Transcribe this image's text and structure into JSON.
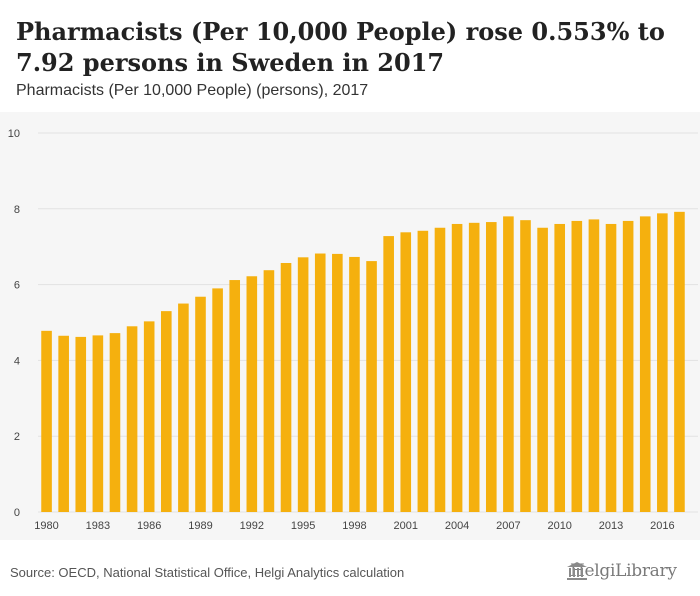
{
  "header": {
    "title": "Pharmacists (Per 10,000 People) rose 0.553% to 7.92 persons in Sweden in 2017",
    "subtitle": "Pharmacists (Per 10,000 People) (persons), 2017"
  },
  "footer": {
    "source": "Source: OECD, National Statistical Office, Helgi Analytics calculation",
    "logo_text": "HelgiLibrary",
    "logo_icon": "library-building-icon"
  },
  "colors": {
    "bar": "#f5b00e",
    "plot_background": "#f6f6f6",
    "gridline": "#e2e2e2",
    "axis_text": "#444444"
  },
  "chart_data": {
    "type": "bar",
    "title": "",
    "xlabel": "",
    "ylabel": "",
    "ylim": [
      0,
      10
    ],
    "yticks": [
      0,
      2,
      4,
      6,
      8,
      10
    ],
    "xtick_labels": [
      "1980",
      "1983",
      "1986",
      "1989",
      "1992",
      "1995",
      "1998",
      "2001",
      "2004",
      "2007",
      "2010",
      "2013",
      "2016"
    ],
    "grid": "horizontal",
    "categories": [
      1980,
      1981,
      1982,
      1983,
      1984,
      1985,
      1986,
      1987,
      1988,
      1989,
      1990,
      1991,
      1992,
      1993,
      1994,
      1995,
      1996,
      1997,
      1998,
      1999,
      2000,
      2001,
      2002,
      2003,
      2004,
      2005,
      2006,
      2007,
      2008,
      2009,
      2010,
      2011,
      2012,
      2013,
      2014,
      2015,
      2016,
      2017
    ],
    "values": [
      4.78,
      4.65,
      4.62,
      4.66,
      4.72,
      4.9,
      5.03,
      5.3,
      5.5,
      5.68,
      5.9,
      6.12,
      6.22,
      6.38,
      6.57,
      6.72,
      6.82,
      6.81,
      6.73,
      6.62,
      7.28,
      7.38,
      7.42,
      7.5,
      7.6,
      7.63,
      7.65,
      7.8,
      7.7,
      7.5,
      7.6,
      7.68,
      7.72,
      7.6,
      7.68,
      7.8,
      7.88,
      7.92
    ]
  }
}
